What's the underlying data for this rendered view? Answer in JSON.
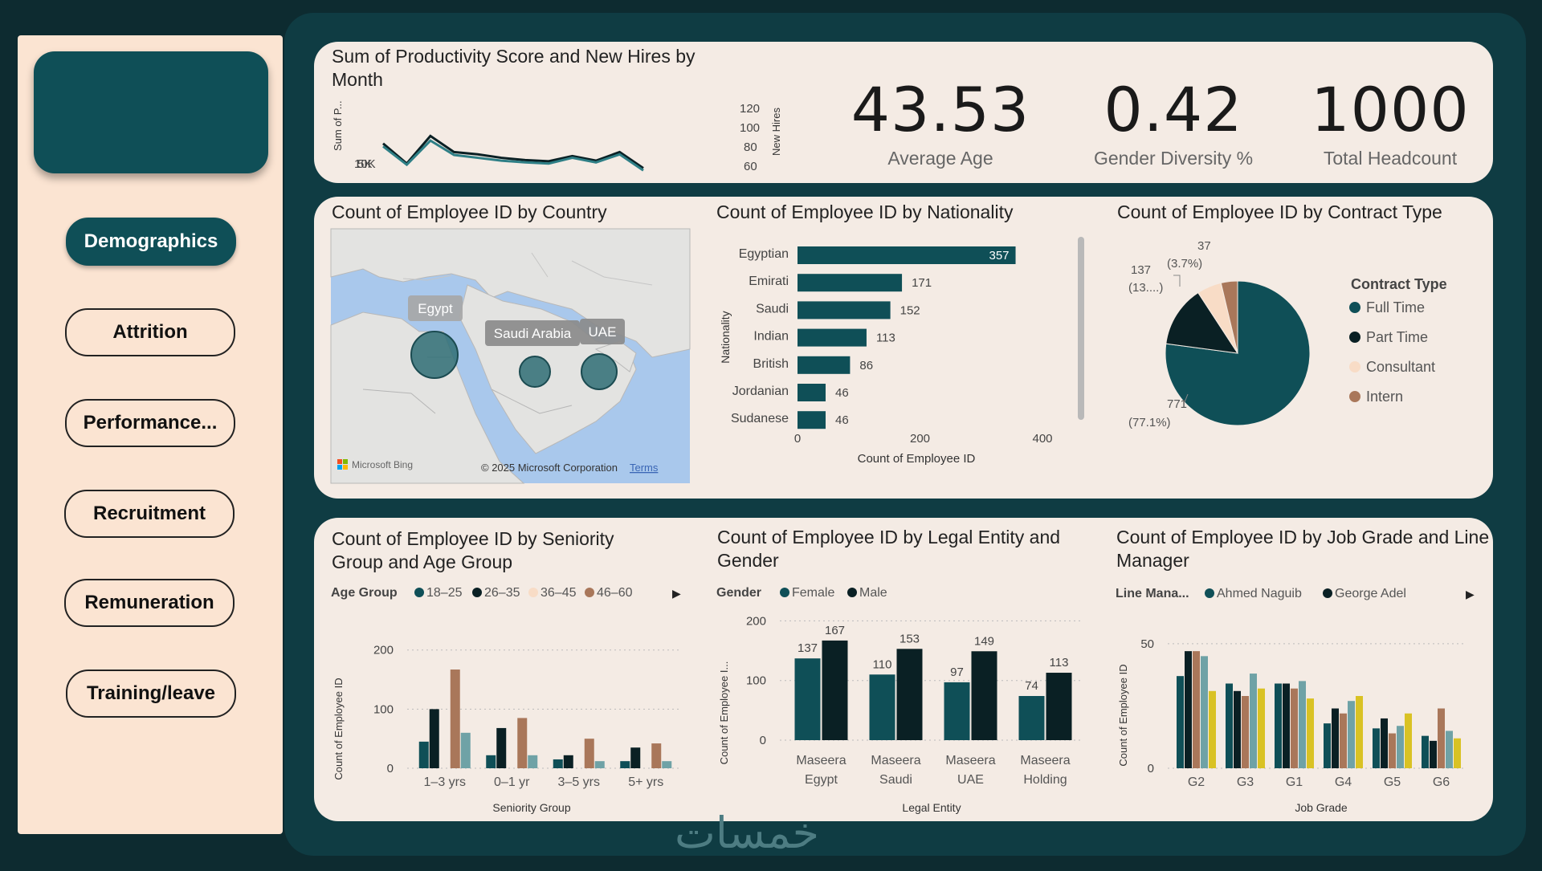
{
  "nav": {
    "items": [
      "Demographics",
      "Attrition",
      "Performance...",
      "Recruitment",
      "Remuneration",
      "Training/leave"
    ],
    "active": "Demographics"
  },
  "kpis": [
    {
      "value": "43.53",
      "label": "Average Age"
    },
    {
      "value": "0.42",
      "label": "Gender Diversity %"
    },
    {
      "value": "1000",
      "label": "Total Headcount"
    }
  ],
  "colors": {
    "teal": "#0f4f57",
    "black": "#0a2024",
    "peach": "#f8dcc6",
    "brown": "#a9775a",
    "lightteal": "#6fa2a6",
    "yellow": "#d9c224"
  },
  "watermark": "خمسات",
  "chart_data": [
    {
      "type": "line",
      "title": "Sum of Productivity Score and New Hires by Month",
      "ylabel": "Sum of P...",
      "y2label": "New Hires",
      "yticks": [
        "10K",
        "5K"
      ],
      "y2ticks": [
        "120",
        "100",
        "80",
        "60"
      ],
      "series": [
        {
          "values": [
            10500,
            7000,
            11800,
            9000,
            8600,
            8000,
            7600,
            7400,
            8300,
            7500,
            9000,
            6200
          ]
        },
        {
          "values": [
            10000,
            6800,
            11000,
            8500,
            8000,
            7500,
            7200,
            7000,
            8000,
            7200,
            8600,
            5800
          ]
        }
      ]
    },
    {
      "type": "map",
      "title": "Count of Employee ID by Country",
      "points": [
        {
          "name": "Egypt"
        },
        {
          "name": "Saudi Arabia"
        },
        {
          "name": "UAE"
        }
      ],
      "attribution": "Microsoft Bing",
      "copyright": "© 2025 Microsoft Corporation",
      "terms": "Terms"
    },
    {
      "type": "bar",
      "orientation": "horizontal",
      "title": "Count of Employee ID by Nationality",
      "categories": [
        "Egyptian",
        "Emirati",
        "Saudi",
        "Indian",
        "British",
        "Jordanian",
        "Sudanese"
      ],
      "values": [
        357,
        171,
        152,
        113,
        86,
        46,
        46
      ],
      "xlabel": "Count of Employee ID",
      "ylabel": "Nationality",
      "xlim": [
        0,
        400
      ],
      "xticks": [
        "0",
        "200",
        "400"
      ]
    },
    {
      "type": "pie",
      "title": "Count of Employee ID by Contract Type",
      "legend_title": "Contract Type",
      "categories": [
        "Full Time",
        "Part Time",
        "Consultant",
        "Intern"
      ],
      "values": [
        771,
        137,
        55,
        37
      ],
      "labels": [
        {
          "value": "771",
          "pct": "(77.1%)"
        },
        {
          "value": "137",
          "pct": "(13....)"
        },
        {
          "value": "37",
          "pct": "(3.7%)"
        }
      ]
    },
    {
      "type": "bar",
      "title": "Count of Employee ID by Seniority Group and Age Group",
      "legend_title": "Age Group",
      "categories": [
        "1–3 yrs",
        "0–1 yr",
        "3–5 yrs",
        "5+ yrs"
      ],
      "series": [
        {
          "name": "18–25",
          "values": [
            45,
            22,
            15,
            12
          ]
        },
        {
          "name": "26–35",
          "values": [
            100,
            68,
            22,
            35
          ]
        },
        {
          "name": "36–45",
          "values": [
            0,
            0,
            0,
            0
          ]
        },
        {
          "name": "46–60",
          "values": [
            167,
            85,
            50,
            42
          ]
        },
        {
          "name": "",
          "values": [
            60,
            22,
            12,
            12
          ]
        }
      ],
      "xlabel": "Seniority Group",
      "ylabel": "Count of Employee ID",
      "ylim": [
        0,
        200
      ],
      "yticks": [
        "200",
        "100",
        "0"
      ]
    },
    {
      "type": "bar",
      "title": "Count of Employee ID by Legal Entity and Gender",
      "legend_title": "Gender",
      "categories": [
        [
          "Maseera",
          "Egypt"
        ],
        [
          "Maseera",
          "Saudi"
        ],
        [
          "Maseera",
          "UAE"
        ],
        [
          "Maseera",
          "Holding"
        ]
      ],
      "series": [
        {
          "name": "Female",
          "values": [
            137,
            110,
            97,
            74
          ]
        },
        {
          "name": "Male",
          "values": [
            167,
            153,
            149,
            113
          ]
        }
      ],
      "xlabel": "Legal Entity",
      "ylabel": "Count of Employee I...",
      "ylim": [
        0,
        200
      ],
      "yticks": [
        "200",
        "100",
        "0"
      ]
    },
    {
      "type": "bar",
      "title": "Count of Employee ID by Job Grade and Line Manager",
      "legend_title": "Line Mana...",
      "categories": [
        "G2",
        "G3",
        "G1",
        "G4",
        "G5",
        "G6"
      ],
      "series": [
        {
          "name": "Ahmed Naguib",
          "values": [
            37,
            34,
            34,
            18,
            16,
            13
          ]
        },
        {
          "name": "George Adel",
          "values": [
            47,
            31,
            34,
            24,
            20,
            11
          ]
        },
        {
          "name": "",
          "values": [
            47,
            29,
            32,
            22,
            14,
            24
          ]
        },
        {
          "name": "",
          "values": [
            45,
            38,
            35,
            27,
            17,
            15
          ]
        },
        {
          "name": "",
          "values": [
            31,
            32,
            28,
            29,
            22,
            12
          ]
        }
      ],
      "xlabel": "Job Grade",
      "ylabel": "Count of Employee ID",
      "ylim": [
        0,
        60
      ],
      "yticks": [
        "50",
        "0"
      ]
    }
  ]
}
